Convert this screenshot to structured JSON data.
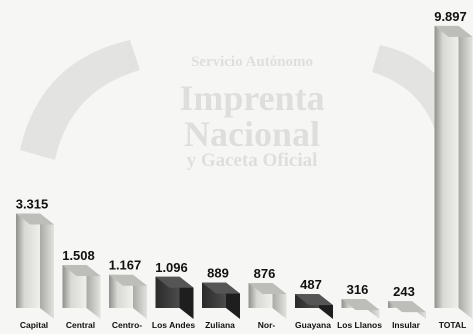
{
  "chart_data": {
    "type": "bar",
    "categories": [
      "Capital",
      "Central",
      "Centro-",
      "Los Andes",
      "Zuliana",
      "Nor-",
      "Guayana",
      "Los Llanos",
      "Insular",
      "TOTAL"
    ],
    "values": [
      3315,
      1508,
      1167,
      1096,
      889,
      876,
      487,
      316,
      243,
      9897
    ],
    "value_labels": [
      "3.315",
      "1.508",
      "1.167",
      "1.096",
      "889",
      "876",
      "487",
      "316",
      "243",
      "9.897"
    ],
    "title": "",
    "xlabel": "",
    "ylabel": "",
    "ylim": [
      0,
      10000
    ],
    "grid": false,
    "legend": "none",
    "colors": {
      "dark_bar": "#3a3a3a",
      "light_bar": "#c9c9c6",
      "background": "#f6f6f4",
      "text": "#111111"
    },
    "dark_categories": [
      "Los Andes",
      "Zuliana",
      "Guayana"
    ]
  },
  "watermark": {
    "lines": [
      "Servicio Autónomo",
      "Imprenta",
      "Nacional",
      "y Gaceta Oficial"
    ]
  }
}
